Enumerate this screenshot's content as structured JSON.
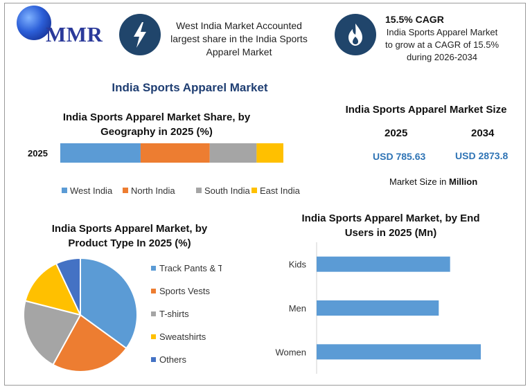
{
  "header": {
    "logo_text": "MMR",
    "highlight1": "West India Market Accounted largest share in the India Sports Apparel Market",
    "highlight2_title": "15.5% CAGR",
    "highlight2_text": "India Sports Apparel Market to grow at a CAGR of 15.5% during 2026-2034",
    "icons": [
      "lightning-bolt-icon",
      "flame-icon"
    ]
  },
  "main_title": "India Sports Apparel Market",
  "market_size": {
    "title": "India Sports Apparel Market Size",
    "year1": "2025",
    "year2": "2034",
    "value1": "USD 785.63",
    "value2": "USD 2873.8",
    "note_prefix": "Market Size in ",
    "note_unit": "Million"
  },
  "colors": {
    "blue": "#5b9bd5",
    "orange": "#ed7d31",
    "gray": "#a5a5a5",
    "yellow": "#ffc000",
    "dark_blue": "#4472c4",
    "icon_bg": "#20456b",
    "title_blue": "#1f3e72"
  },
  "chart_data": [
    {
      "type": "bar",
      "orientation": "horizontal-stacked",
      "title": "India Sports Apparel Market Share, by Geography in 2025 (%)",
      "categories": [
        "2025"
      ],
      "series": [
        {
          "name": "West India",
          "values": [
            36
          ]
        },
        {
          "name": "North India",
          "values": [
            31
          ]
        },
        {
          "name": "South India",
          "values": [
            21
          ]
        },
        {
          "name": "East India",
          "values": [
            12
          ]
        }
      ],
      "legend": "bottom"
    },
    {
      "type": "pie",
      "title": "India Sports Apparel Market, by Product Type In 2025 (%)",
      "labels": [
        "Track Pants & Tights",
        "Sports Vests",
        "T-shirts",
        "Sweatshirts",
        "Others"
      ],
      "values": [
        35,
        23,
        21,
        14,
        7
      ],
      "legend": "right"
    },
    {
      "type": "bar",
      "orientation": "horizontal",
      "title": "India Sports Apparel Market, by End Users in 2025 (Mn)",
      "categories": [
        "Kids",
        "Men",
        "Women"
      ],
      "values": [
        200,
        183,
        246
      ],
      "xlim": [
        0,
        300
      ]
    }
  ]
}
